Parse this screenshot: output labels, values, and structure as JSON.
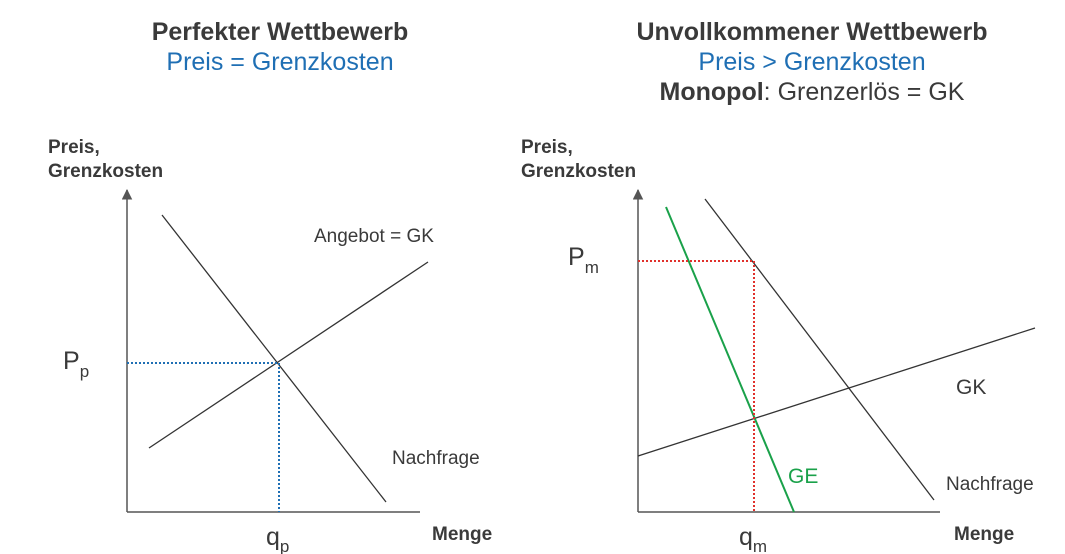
{
  "colors": {
    "text": "#3a3a3a",
    "axis": "#555555",
    "line": "#333333",
    "blue": "#1f6fb4",
    "red": "#e0302b",
    "green": "#1aa14a"
  },
  "left": {
    "title": "Perfekter Wettbewerb",
    "subtitle": "Preis = Grenzkosten",
    "ylabel_line1": "Preis,",
    "ylabel_line2": "Grenzkosten",
    "xlabel": "Menge",
    "supply_label": "Angebot = GK",
    "demand_label": "Nachfrage",
    "price_main": "P",
    "price_sub": "p",
    "qty_main": "q",
    "qty_sub": "p"
  },
  "right": {
    "title": "Unvollkommener Wettbewerb",
    "subtitle": "Preis > Grenzkosten",
    "line3_bold": "Monopol",
    "line3_rest": ": Grenzerlös = GK",
    "ylabel_line1": "Preis,",
    "ylabel_line2": "Grenzkosten",
    "xlabel": "Menge",
    "gk_label": "GK",
    "ge_label": "GE",
    "demand_label": "Nachfrage",
    "price_main": "P",
    "price_sub": "m",
    "qty_main": "q",
    "qty_sub": "m"
  }
}
